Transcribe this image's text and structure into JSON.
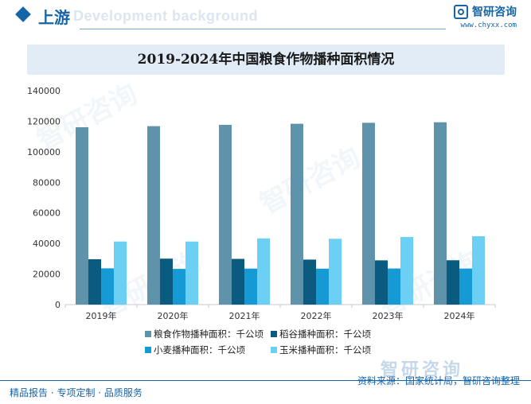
{
  "header": {
    "section_title": "上游",
    "ghost_text": "Development background",
    "brand_name": "智研咨询",
    "brand_url": "www.chyxx.com"
  },
  "watermark_text": "智研咨询",
  "footer": {
    "left_text": "精品报告 · 专项定制 · 品质服务",
    "source_text": "资料来源：国家统计局，智研咨询整理",
    "logo_text": "智研咨询"
  },
  "colors": {
    "accent": "#1565a8",
    "series": [
      "#5e93ab",
      "#0b5b80",
      "#159ad6",
      "#6cd0f4"
    ]
  },
  "chart_data": {
    "type": "bar",
    "title": "2019-2024年中国粮食作物播种面积情况",
    "categories": [
      "2019年",
      "2020年",
      "2021年",
      "2022年",
      "2023年",
      "2024年"
    ],
    "ylim": [
      0,
      140000
    ],
    "yticks": [
      0,
      20000,
      40000,
      60000,
      80000,
      100000,
      120000,
      140000
    ],
    "grid": false,
    "legend_position": "bottom",
    "series": [
      {
        "name": "粮食作物播种面积：千公顷",
        "values": [
          116064,
          116768,
          117631,
          118332,
          118969,
          119319
        ]
      },
      {
        "name": "稻谷播种面积：千公顷",
        "values": [
          29694,
          30076,
          29921,
          29450,
          28949,
          29007
        ]
      },
      {
        "name": "小麦播种面积：千公顷",
        "values": [
          23728,
          23380,
          23568,
          23518,
          23627,
          23587
        ]
      },
      {
        "name": "玉米播种面积：千公顷",
        "values": [
          41284,
          41264,
          43324,
          43070,
          44219,
          44741
        ]
      }
    ]
  }
}
